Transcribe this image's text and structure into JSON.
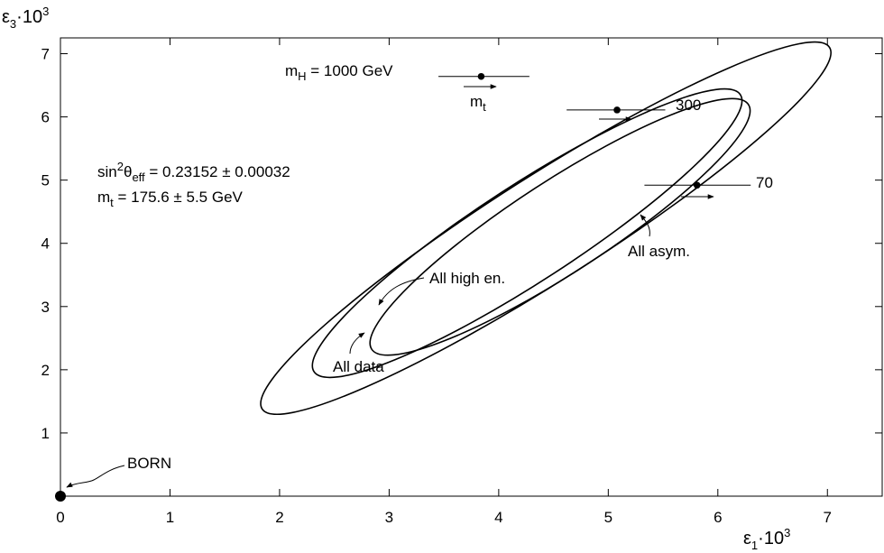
{
  "chart_data": {
    "type": "scatter",
    "xlabel": {
      "main": "ε",
      "sub": "1",
      "mid": "·10",
      "sup": "3"
    },
    "ylabel": {
      "main": "ε",
      "sub": "3",
      "mid": "·10",
      "sup": "3"
    },
    "xlim": [
      0,
      7.5
    ],
    "ylim": [
      0,
      7.25
    ],
    "xticks": [
      0,
      1,
      2,
      3,
      4,
      5,
      6,
      7
    ],
    "yticks": [
      1,
      2,
      3,
      4,
      5,
      6,
      7
    ],
    "xtick_labels": [
      "0",
      "1",
      "2",
      "3",
      "4",
      "5",
      "6",
      "7"
    ],
    "ytick_labels": [
      "1",
      "2",
      "3",
      "4",
      "5",
      "6",
      "7"
    ],
    "born_point": {
      "x": 0,
      "y": 0,
      "label": "BORN"
    },
    "sm_predictions": [
      {
        "label_parts": [
          "m",
          "H",
          " = 1000 GeV"
        ],
        "x": 3.84,
        "y": 6.64,
        "xerr_low": 3.45,
        "xerr_high": 4.28
      },
      {
        "label_parts": [
          "300"
        ],
        "x": 5.08,
        "y": 6.11,
        "xerr_low": 4.62,
        "xerr_high": 5.52
      },
      {
        "label_parts": [
          "70"
        ],
        "x": 5.81,
        "y": 4.92,
        "xerr_low": 5.33,
        "xerr_high": 6.3
      }
    ],
    "mt_arrow_label": [
      "m",
      "t"
    ],
    "ellipses": [
      {
        "name": "All asym.",
        "cx": 4.43,
        "cy": 4.24,
        "rx": 3.07,
        "ry": 0.48,
        "angle_deg": 32.5
      },
      {
        "name": "All data",
        "cx": 4.26,
        "cy": 4.16,
        "rx": 2.32,
        "ry": 0.44,
        "angle_deg": 33
      },
      {
        "name": "All high en.",
        "cx": 4.56,
        "cy": 4.26,
        "rx": 2.05,
        "ry": 0.42,
        "angle_deg": 33
      }
    ],
    "ellipse_labels": {
      "all_asym": "All asym.",
      "all_high_en": "All high en.",
      "all_data": "All data"
    },
    "annotation": {
      "sin2_line": {
        "a": "sin",
        "b": "2",
        "c": "θ",
        "d": "eff",
        "e": " = 0.23152 ± 0.00032"
      },
      "mt_line": {
        "a": "m",
        "b": "t",
        "c": " = 175.6 ± 5.5 GeV"
      }
    }
  }
}
